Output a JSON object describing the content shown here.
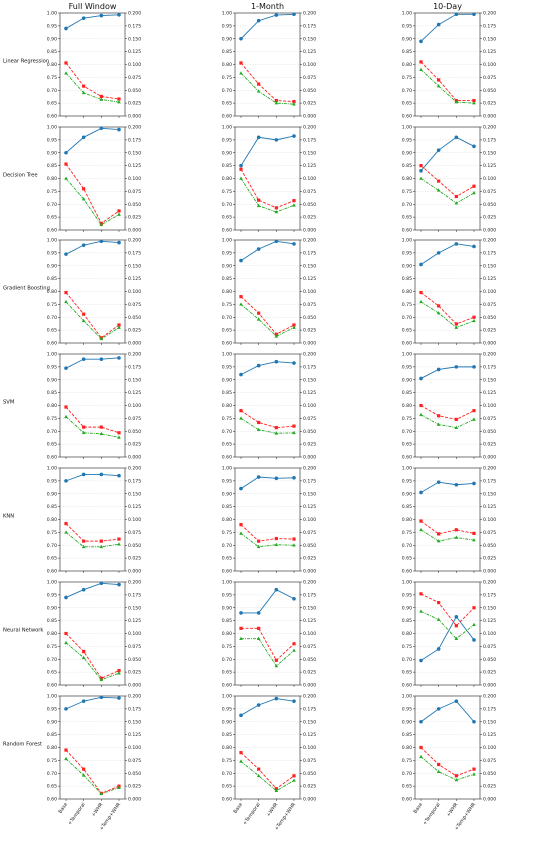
{
  "figure": {
    "columns": [
      "Full Window",
      "1-Month",
      "10-Day"
    ],
    "rows": [
      "Linear Regression",
      "Decision Tree",
      "Gradient Boosting",
      "SVM",
      "KNN",
      "Neural Network",
      "Random Forest"
    ],
    "x_ticks": [
      "Base",
      "+Temporal",
      "+WHR",
      "+Temp+WHR"
    ],
    "colors": {
      "left_axis_series": "#1f77b4",
      "right_axis_series_a": "#ff2020",
      "right_axis_series_b": "#22aa22"
    }
  },
  "chart_data": {
    "type": "line",
    "layout": "grid 7 rows x 3 columns, dual y-axis",
    "categories": [
      "Base",
      "+Temporal",
      "+WHR",
      "+Temp+WHR"
    ],
    "y_left": {
      "lim": [
        0.6,
        1.0
      ],
      "ticks": [
        "0.60",
        "0.65",
        "0.70",
        "0.75",
        "0.80",
        "0.85",
        "0.90",
        "0.95",
        "1.00"
      ]
    },
    "y_right": {
      "lim": [
        0.0,
        0.2
      ],
      "ticks": [
        "0.000",
        "0.025",
        "0.050",
        "0.075",
        "0.100",
        "0.125",
        "0.150",
        "0.175",
        "0.200"
      ]
    },
    "grid": "horizontal dotted",
    "panels": [
      {
        "row": "Linear Regression",
        "column": "Full Window",
        "series": [
          {
            "axis": "left",
            "marker": "circle",
            "values": [
              0.94,
              0.98,
              0.99,
              0.993
            ]
          },
          {
            "axis": "right",
            "marker": "square",
            "values": [
              0.103,
              0.058,
              0.038,
              0.033
            ]
          },
          {
            "axis": "right",
            "marker": "triangle",
            "values": [
              0.083,
              0.045,
              0.032,
              0.027
            ]
          }
        ]
      },
      {
        "row": "Linear Regression",
        "column": "1-Month",
        "series": [
          {
            "axis": "left",
            "marker": "circle",
            "values": [
              0.9,
              0.97,
              0.992,
              0.995
            ]
          },
          {
            "axis": "right",
            "marker": "square",
            "values": [
              0.103,
              0.062,
              0.03,
              0.028
            ]
          },
          {
            "axis": "right",
            "marker": "triangle",
            "values": [
              0.083,
              0.048,
              0.025,
              0.023
            ]
          }
        ]
      },
      {
        "row": "Linear Regression",
        "column": "10-Day",
        "series": [
          {
            "axis": "left",
            "marker": "circle",
            "values": [
              0.89,
              0.955,
              0.995,
              0.995
            ]
          },
          {
            "axis": "right",
            "marker": "square",
            "values": [
              0.105,
              0.07,
              0.03,
              0.03
            ]
          },
          {
            "axis": "right",
            "marker": "triangle",
            "values": [
              0.09,
              0.058,
              0.027,
              0.025
            ]
          }
        ]
      },
      {
        "row": "Decision Tree",
        "column": "Full Window",
        "series": [
          {
            "axis": "left",
            "marker": "circle",
            "values": [
              0.9,
              0.96,
              0.995,
              0.99
            ]
          },
          {
            "axis": "right",
            "marker": "square",
            "values": [
              0.128,
              0.08,
              0.013,
              0.037
            ]
          },
          {
            "axis": "right",
            "marker": "triangle",
            "values": [
              0.1,
              0.06,
              0.01,
              0.03
            ]
          }
        ]
      },
      {
        "row": "Decision Tree",
        "column": "1-Month",
        "series": [
          {
            "axis": "left",
            "marker": "circle",
            "values": [
              0.85,
              0.96,
              0.95,
              0.965
            ]
          },
          {
            "axis": "right",
            "marker": "square",
            "values": [
              0.118,
              0.058,
              0.043,
              0.057
            ]
          },
          {
            "axis": "right",
            "marker": "triangle",
            "values": [
              0.1,
              0.047,
              0.035,
              0.048
            ]
          }
        ]
      },
      {
        "row": "Decision Tree",
        "column": "10-Day",
        "series": [
          {
            "axis": "left",
            "marker": "circle",
            "values": [
              0.83,
              0.91,
              0.96,
              0.925
            ]
          },
          {
            "axis": "right",
            "marker": "square",
            "values": [
              0.125,
              0.095,
              0.065,
              0.085
            ]
          },
          {
            "axis": "right",
            "marker": "triangle",
            "values": [
              0.1,
              0.077,
              0.052,
              0.072
            ]
          }
        ]
      },
      {
        "row": "Gradient Boosting",
        "column": "Full Window",
        "series": [
          {
            "axis": "left",
            "marker": "circle",
            "values": [
              0.945,
              0.98,
              0.995,
              0.99
            ]
          },
          {
            "axis": "right",
            "marker": "square",
            "values": [
              0.098,
              0.056,
              0.01,
              0.035
            ]
          },
          {
            "axis": "right",
            "marker": "triangle",
            "values": [
              0.08,
              0.043,
              0.008,
              0.03
            ]
          }
        ]
      },
      {
        "row": "Gradient Boosting",
        "column": "1-Month",
        "series": [
          {
            "axis": "left",
            "marker": "circle",
            "values": [
              0.92,
              0.965,
              0.995,
              0.985
            ]
          },
          {
            "axis": "right",
            "marker": "square",
            "values": [
              0.09,
              0.058,
              0.017,
              0.035
            ]
          },
          {
            "axis": "right",
            "marker": "triangle",
            "values": [
              0.075,
              0.046,
              0.013,
              0.03
            ]
          }
        ]
      },
      {
        "row": "Gradient Boosting",
        "column": "10-Day",
        "series": [
          {
            "axis": "left",
            "marker": "circle",
            "values": [
              0.905,
              0.95,
              0.985,
              0.975
            ]
          },
          {
            "axis": "right",
            "marker": "square",
            "values": [
              0.098,
              0.072,
              0.037,
              0.05
            ]
          },
          {
            "axis": "right",
            "marker": "triangle",
            "values": [
              0.08,
              0.058,
              0.03,
              0.043
            ]
          }
        ]
      },
      {
        "row": "SVM",
        "column": "Full Window",
        "series": [
          {
            "axis": "left",
            "marker": "circle",
            "values": [
              0.945,
              0.98,
              0.98,
              0.985
            ]
          },
          {
            "axis": "right",
            "marker": "square",
            "values": [
              0.097,
              0.058,
              0.058,
              0.047
            ]
          },
          {
            "axis": "right",
            "marker": "triangle",
            "values": [
              0.078,
              0.047,
              0.045,
              0.038
            ]
          }
        ]
      },
      {
        "row": "SVM",
        "column": "1-Month",
        "series": [
          {
            "axis": "left",
            "marker": "circle",
            "values": [
              0.92,
              0.955,
              0.97,
              0.965
            ]
          },
          {
            "axis": "right",
            "marker": "square",
            "values": [
              0.09,
              0.067,
              0.057,
              0.06
            ]
          },
          {
            "axis": "right",
            "marker": "triangle",
            "values": [
              0.075,
              0.053,
              0.046,
              0.047
            ]
          }
        ]
      },
      {
        "row": "SVM",
        "column": "10-Day",
        "series": [
          {
            "axis": "left",
            "marker": "circle",
            "values": [
              0.905,
              0.94,
              0.95,
              0.95
            ]
          },
          {
            "axis": "right",
            "marker": "square",
            "values": [
              0.1,
              0.08,
              0.073,
              0.09
            ]
          },
          {
            "axis": "right",
            "marker": "triangle",
            "values": [
              0.082,
              0.063,
              0.057,
              0.073
            ]
          }
        ]
      },
      {
        "row": "KNN",
        "column": "Full Window",
        "series": [
          {
            "axis": "left",
            "marker": "circle",
            "values": [
              0.95,
              0.975,
              0.975,
              0.97
            ]
          },
          {
            "axis": "right",
            "marker": "square",
            "values": [
              0.092,
              0.058,
              0.058,
              0.062
            ]
          },
          {
            "axis": "right",
            "marker": "triangle",
            "values": [
              0.075,
              0.047,
              0.047,
              0.052
            ]
          }
        ]
      },
      {
        "row": "KNN",
        "column": "1-Month",
        "series": [
          {
            "axis": "left",
            "marker": "circle",
            "values": [
              0.92,
              0.965,
              0.96,
              0.962
            ]
          },
          {
            "axis": "right",
            "marker": "square",
            "values": [
              0.09,
              0.058,
              0.063,
              0.062
            ]
          },
          {
            "axis": "right",
            "marker": "triangle",
            "values": [
              0.073,
              0.047,
              0.051,
              0.05
            ]
          }
        ]
      },
      {
        "row": "KNN",
        "column": "10-Day",
        "series": [
          {
            "axis": "left",
            "marker": "circle",
            "values": [
              0.905,
              0.945,
              0.935,
              0.94
            ]
          },
          {
            "axis": "right",
            "marker": "square",
            "values": [
              0.097,
              0.072,
              0.08,
              0.073
            ]
          },
          {
            "axis": "right",
            "marker": "triangle",
            "values": [
              0.08,
              0.058,
              0.065,
              0.06
            ]
          }
        ]
      },
      {
        "row": "Neural Network",
        "column": "Full Window",
        "series": [
          {
            "axis": "left",
            "marker": "circle",
            "values": [
              0.94,
              0.97,
              0.995,
              0.99
            ]
          },
          {
            "axis": "right",
            "marker": "square",
            "values": [
              0.1,
              0.065,
              0.013,
              0.028
            ]
          },
          {
            "axis": "right",
            "marker": "triangle",
            "values": [
              0.082,
              0.053,
              0.01,
              0.023
            ]
          }
        ]
      },
      {
        "row": "Neural Network",
        "column": "1-Month",
        "series": [
          {
            "axis": "left",
            "marker": "circle",
            "values": [
              0.88,
              0.88,
              0.97,
              0.935
            ]
          },
          {
            "axis": "right",
            "marker": "square",
            "values": [
              0.11,
              0.11,
              0.048,
              0.08
            ]
          },
          {
            "axis": "right",
            "marker": "triangle",
            "values": [
              0.09,
              0.09,
              0.037,
              0.067
            ]
          }
        ]
      },
      {
        "row": "Neural Network",
        "column": "10-Day",
        "series": [
          {
            "axis": "left",
            "marker": "circle",
            "values": [
              0.695,
              0.74,
              0.865,
              0.775
            ]
          },
          {
            "axis": "right",
            "marker": "square",
            "values": [
              0.177,
              0.16,
              0.115,
              0.15
            ]
          },
          {
            "axis": "right",
            "marker": "triangle",
            "values": [
              0.143,
              0.127,
              0.09,
              0.117
            ]
          }
        ]
      },
      {
        "row": "Random Forest",
        "column": "Full Window",
        "series": [
          {
            "axis": "left",
            "marker": "circle",
            "values": [
              0.95,
              0.98,
              0.995,
              0.992
            ]
          },
          {
            "axis": "right",
            "marker": "square",
            "values": [
              0.095,
              0.058,
              0.011,
              0.025
            ]
          },
          {
            "axis": "right",
            "marker": "triangle",
            "values": [
              0.078,
              0.046,
              0.01,
              0.022
            ]
          }
        ]
      },
      {
        "row": "Random Forest",
        "column": "1-Month",
        "series": [
          {
            "axis": "left",
            "marker": "circle",
            "values": [
              0.925,
              0.965,
              0.99,
              0.98
            ]
          },
          {
            "axis": "right",
            "marker": "square",
            "values": [
              0.09,
              0.058,
              0.02,
              0.045
            ]
          },
          {
            "axis": "right",
            "marker": "triangle",
            "values": [
              0.073,
              0.045,
              0.016,
              0.036
            ]
          }
        ]
      },
      {
        "row": "Random Forest",
        "column": "10-Day",
        "series": [
          {
            "axis": "left",
            "marker": "circle",
            "values": [
              0.9,
              0.95,
              0.98,
              0.9
            ]
          },
          {
            "axis": "right",
            "marker": "square",
            "values": [
              0.1,
              0.067,
              0.045,
              0.058
            ]
          },
          {
            "axis": "right",
            "marker": "triangle",
            "values": [
              0.082,
              0.053,
              0.037,
              0.048
            ]
          }
        ]
      }
    ]
  }
}
